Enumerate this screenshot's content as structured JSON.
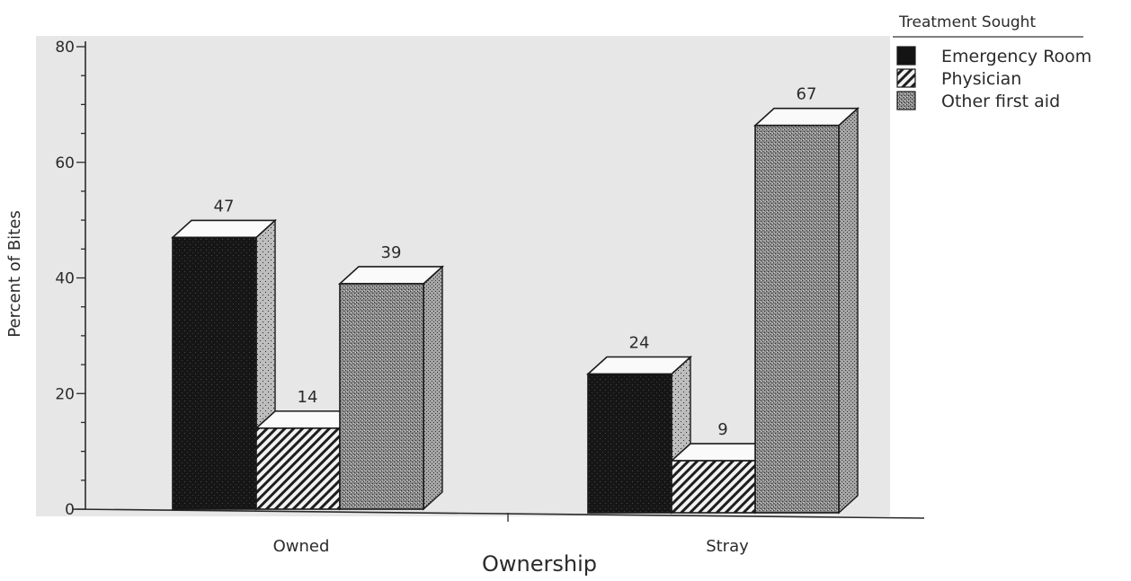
{
  "chart_data": {
    "type": "bar",
    "title": "",
    "xlabel": "Ownership",
    "ylabel": "Percent of Bites",
    "ylim": [
      0,
      80
    ],
    "yticks": [
      0,
      20,
      40,
      60,
      80
    ],
    "categories": [
      "Owned",
      "Stray"
    ],
    "legend": {
      "title": "Treatment Sought",
      "position": "top-right"
    },
    "series": [
      {
        "name": "Emergency Room",
        "values": [
          47,
          24
        ],
        "pattern": "solid-dark"
      },
      {
        "name": "Physician",
        "values": [
          14,
          9
        ],
        "pattern": "diagonal-hatch"
      },
      {
        "name": "Other first aid",
        "values": [
          39,
          67
        ],
        "pattern": "stipple"
      }
    ],
    "data_labels": [
      [
        "47",
        "14",
        "39"
      ],
      [
        "24",
        "9",
        "67"
      ]
    ],
    "grid": false,
    "three_d": true
  }
}
